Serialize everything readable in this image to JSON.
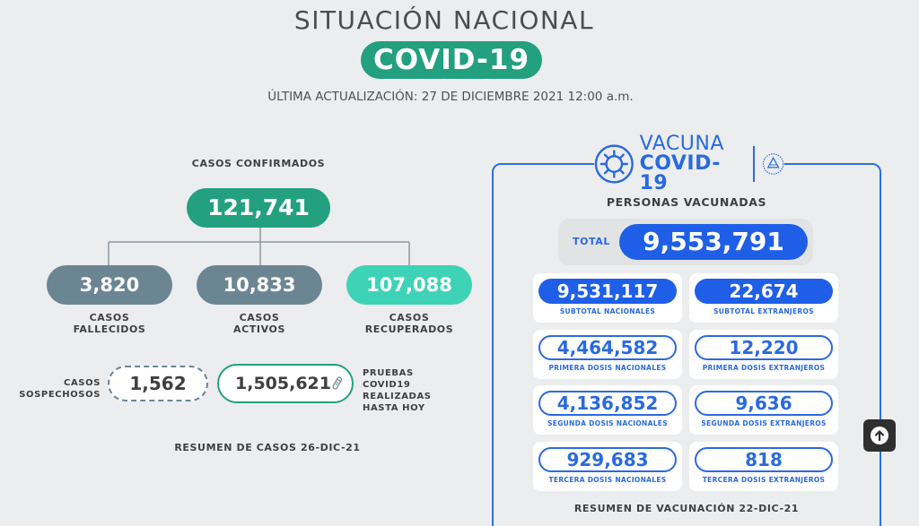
{
  "header": {
    "title": "SITUACIÓN NACIONAL",
    "badge": "COVID-19",
    "updated": "ÚLTIMA ACTUALIZACIÓN: 27 DE DICIEMBRE 2021 12:00 a.m."
  },
  "cases": {
    "confirmed_label": "CASOS CONFIRMADOS",
    "confirmed_value": "121,741",
    "deaths_value": "3,820",
    "deaths_label": "CASOS FALLECIDOS",
    "active_value": "10,833",
    "active_label": "CASOS ACTIVOS",
    "recovered_value": "107,088",
    "recovered_label": "CASOS RECUPERADOS",
    "suspected_label": "CASOS SOSPECHOSOS",
    "suspected_value": "1,562",
    "tests_value": "1,505,621",
    "tests_label": "PRUEBAS COVID19 REALIZADAS HASTA HOY",
    "summary": "RESUMEN DE CASOS 26-DIC-21",
    "colors": {
      "green": "#22a07f",
      "grey": "#6c8593",
      "teal": "#3ed3b6"
    }
  },
  "vaccination": {
    "logo_word1": "VACUNA",
    "logo_word2": "COVID-19",
    "logo_icon": "virus-icon",
    "seal_icon": "national-seal-icon",
    "subtitle": "PERSONAS VACUNADAS",
    "total_label": "TOTAL",
    "total_value": "9,553,791",
    "cards": [
      {
        "value": "9,531,117",
        "label": "SUBTOTAL NACIONALES"
      },
      {
        "value": "22,674",
        "label": "SUBTOTAL EXTRANJEROS"
      },
      {
        "value": "4,464,582",
        "label": "PRIMERA DOSIS NACIONALES"
      },
      {
        "value": "12,220",
        "label": "PRIMERA DOSIS EXTRANJEROS"
      },
      {
        "value": "4,136,852",
        "label": "SEGUNDA DOSIS NACIONALES"
      },
      {
        "value": "9,636",
        "label": "SEGUNDA DOSIS EXTRANJEROS"
      },
      {
        "value": "929,683",
        "label": "TERCERA DOSIS NACIONALES"
      },
      {
        "value": "818",
        "label": "TERCERA DOSIS EXTRANJEROS"
      }
    ],
    "summary": "RESUMEN DE VACUNACIÓN 22-DIC-21",
    "colors": {
      "blue": "#1f5fe8"
    }
  },
  "scroll_top_icon": "arrow-up-icon"
}
